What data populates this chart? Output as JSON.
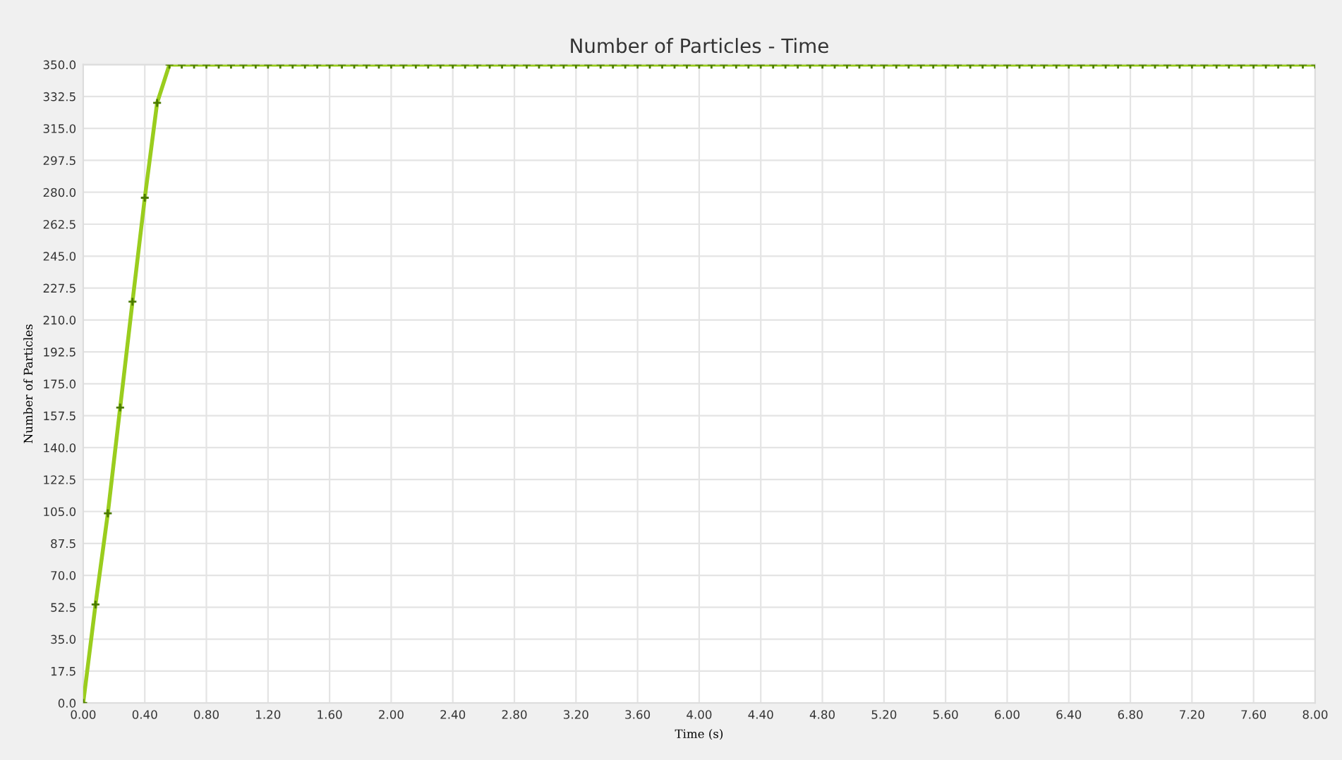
{
  "chart_data": {
    "type": "line",
    "title": "Number of Particles - Time",
    "xlabel": "Time (s)",
    "ylabel": "Number of Particles",
    "x": [
      0,
      0.08,
      0.16,
      0.24,
      0.32,
      0.4,
      0.48,
      0.56,
      0.64,
      0.72,
      0.8,
      0.88,
      0.96,
      1.04,
      1.12,
      1.2,
      1.28,
      1.36,
      1.44,
      1.52,
      1.6,
      1.68,
      1.76,
      1.84,
      1.92,
      2.0,
      2.08,
      2.16,
      2.24,
      2.32,
      2.4,
      2.48,
      2.56,
      2.64,
      2.72,
      2.8,
      2.88,
      2.96,
      3.04,
      3.12,
      3.2,
      3.28,
      3.36,
      3.44,
      3.52,
      3.6,
      3.68,
      3.76,
      3.84,
      3.92,
      4.0,
      4.08,
      4.16,
      4.24,
      4.32,
      4.4,
      4.48,
      4.56,
      4.64,
      4.72,
      4.8,
      4.88,
      4.96,
      5.04,
      5.12,
      5.2,
      5.28,
      5.36,
      5.44,
      5.52,
      5.6,
      5.68,
      5.76,
      5.84,
      5.92,
      6.0,
      6.08,
      6.16,
      6.24,
      6.32,
      6.4,
      6.48,
      6.56,
      6.64,
      6.72,
      6.8,
      6.88,
      6.96,
      7.04,
      7.12,
      7.2,
      7.28,
      7.36,
      7.44,
      7.52,
      7.6,
      7.68,
      7.76,
      7.84,
      7.92,
      8.0
    ],
    "series": [
      {
        "color": "#9acd1e",
        "values": [
          0,
          54,
          104,
          162,
          220,
          277,
          329,
          350,
          350,
          350,
          350,
          350,
          350,
          350,
          350,
          350,
          350,
          350,
          350,
          350,
          350,
          350,
          350,
          350,
          350,
          350,
          350,
          350,
          350,
          350,
          350,
          350,
          350,
          350,
          350,
          350,
          350,
          350,
          350,
          350,
          350,
          350,
          350,
          350,
          350,
          350,
          350,
          350,
          350,
          350,
          350,
          350,
          350,
          350,
          350,
          350,
          350,
          350,
          350,
          350,
          350,
          350,
          350,
          350,
          350,
          350,
          350,
          350,
          350,
          350,
          350,
          350,
          350,
          350,
          350,
          350,
          350,
          350,
          350,
          350,
          350,
          350,
          350,
          350,
          350,
          350,
          350,
          350,
          350,
          350,
          350,
          350,
          350,
          350,
          350,
          350,
          350,
          350,
          350,
          350,
          350
        ]
      }
    ],
    "xlim": [
      0,
      8
    ],
    "ylim": [
      0,
      350
    ],
    "xticks": [
      {
        "value": 0,
        "label": "0.00"
      },
      {
        "value": 0.4,
        "label": "0.40"
      },
      {
        "value": 0.8,
        "label": "0.80"
      },
      {
        "value": 1.2,
        "label": "1.20"
      },
      {
        "value": 1.6,
        "label": "1.60"
      },
      {
        "value": 2.0,
        "label": "2.00"
      },
      {
        "value": 2.4,
        "label": "2.40"
      },
      {
        "value": 2.8,
        "label": "2.80"
      },
      {
        "value": 3.2,
        "label": "3.20"
      },
      {
        "value": 3.6,
        "label": "3.60"
      },
      {
        "value": 4.0,
        "label": "4.00"
      },
      {
        "value": 4.4,
        "label": "4.40"
      },
      {
        "value": 4.8,
        "label": "4.80"
      },
      {
        "value": 5.2,
        "label": "5.20"
      },
      {
        "value": 5.6,
        "label": "5.60"
      },
      {
        "value": 6.0,
        "label": "6.00"
      },
      {
        "value": 6.4,
        "label": "6.40"
      },
      {
        "value": 6.8,
        "label": "6.80"
      },
      {
        "value": 7.2,
        "label": "7.20"
      },
      {
        "value": 7.6,
        "label": "7.60"
      },
      {
        "value": 8,
        "label": "8.00"
      }
    ],
    "yticks": [
      {
        "value": 0,
        "label": "0.0"
      },
      {
        "value": 17.5,
        "label": "17.5"
      },
      {
        "value": 35,
        "label": "35.0"
      },
      {
        "value": 52.5,
        "label": "52.5"
      },
      {
        "value": 70,
        "label": "70.0"
      },
      {
        "value": 87.5,
        "label": "87.5"
      },
      {
        "value": 105,
        "label": "105.0"
      },
      {
        "value": 122.5,
        "label": "122.5"
      },
      {
        "value": 140,
        "label": "140.0"
      },
      {
        "value": 157.5,
        "label": "157.5"
      },
      {
        "value": 175,
        "label": "175.0"
      },
      {
        "value": 192.5,
        "label": "192.5"
      },
      {
        "value": 210,
        "label": "210.0"
      },
      {
        "value": 227.5,
        "label": "227.5"
      },
      {
        "value": 245,
        "label": "245.0"
      },
      {
        "value": 262.5,
        "label": "262.5"
      },
      {
        "value": 280,
        "label": "280.0"
      },
      {
        "value": 297.5,
        "label": "297.5"
      },
      {
        "value": 315,
        "label": "315.0"
      },
      {
        "value": 332.5,
        "label": "332.5"
      },
      {
        "value": 350,
        "label": "350.0"
      }
    ],
    "grid": true,
    "marker": "cross",
    "line_style": "solid"
  }
}
